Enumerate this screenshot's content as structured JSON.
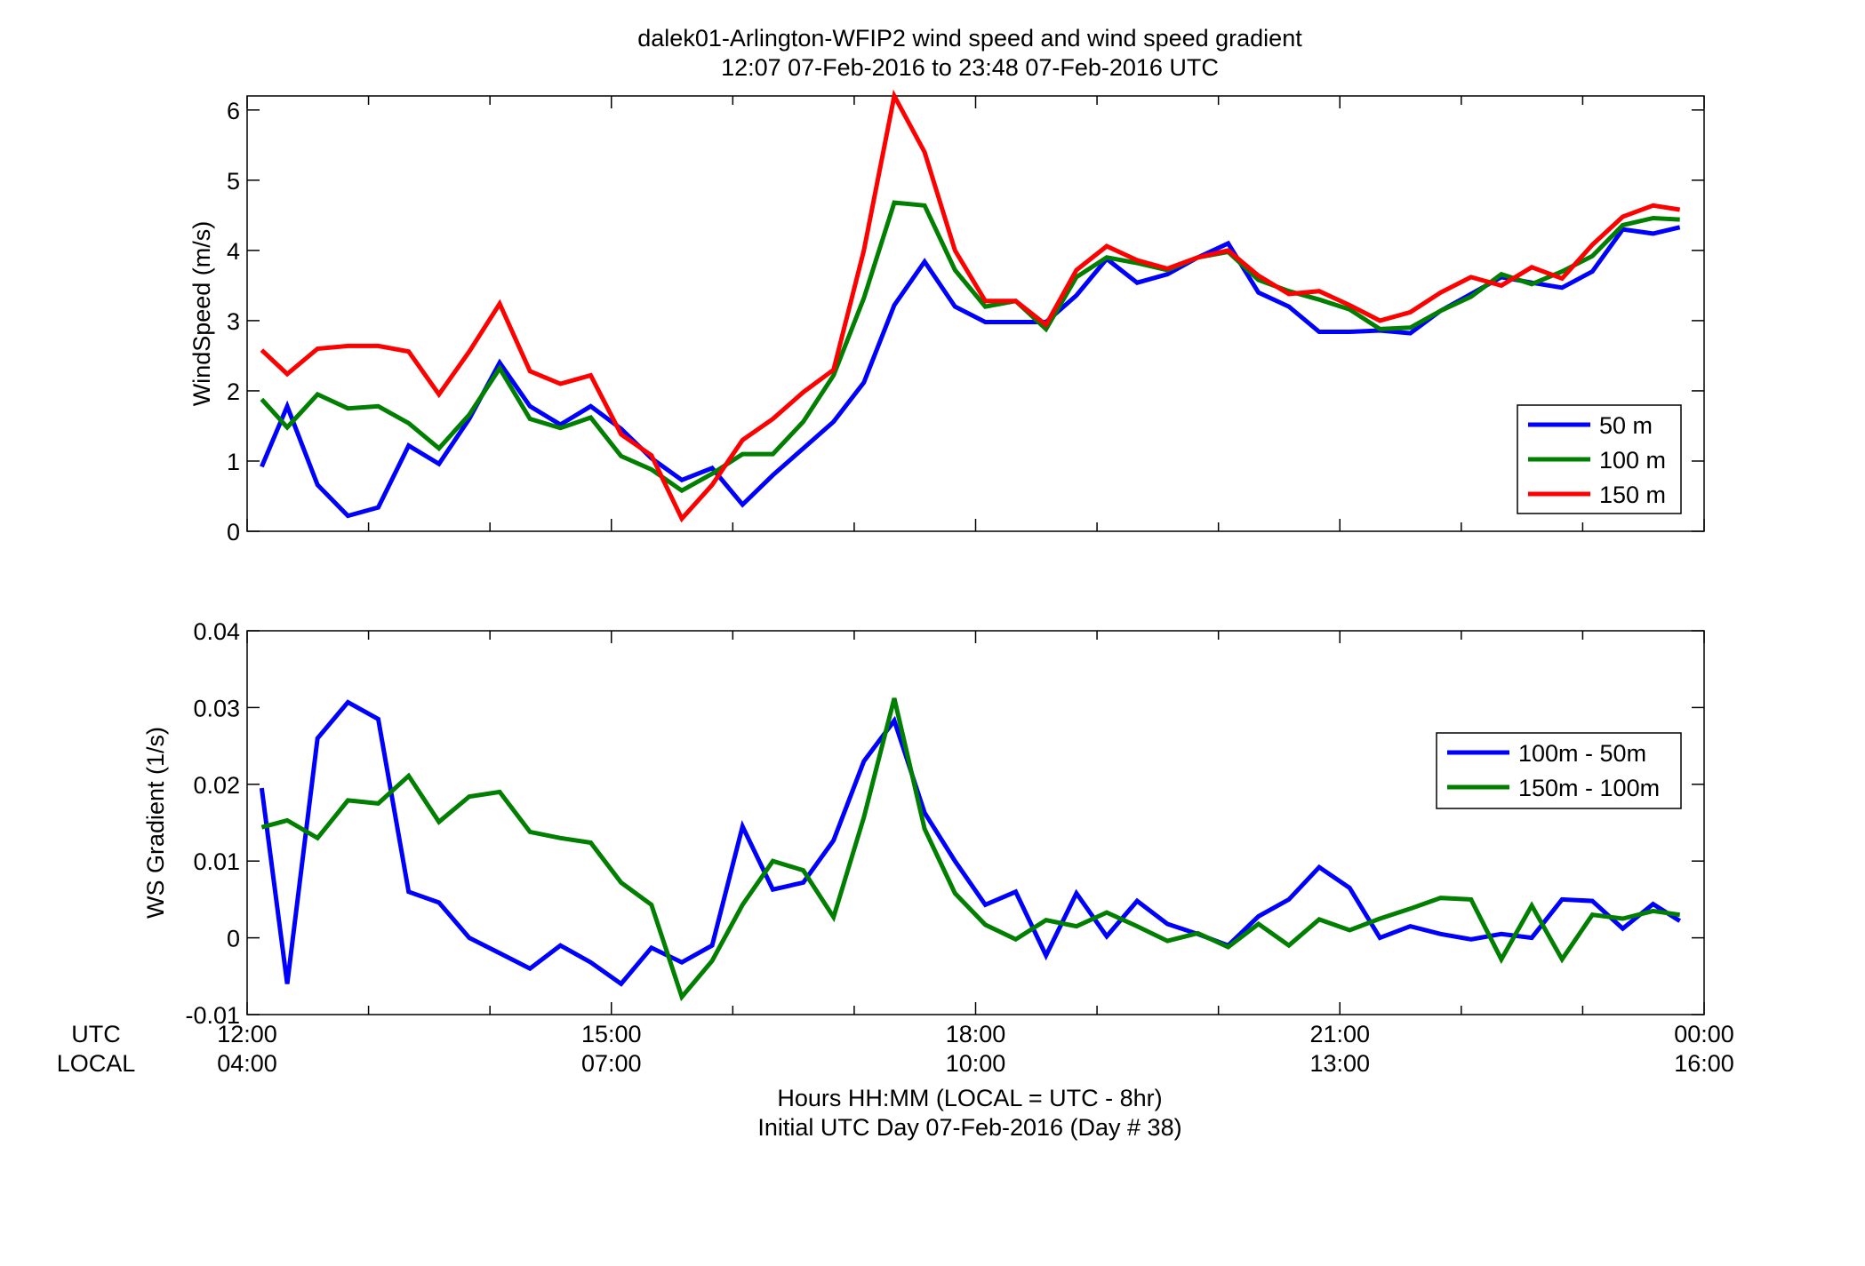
{
  "figure": {
    "title_line1": "dalek01-Arlington-WFIP2  wind speed and wind speed gradient",
    "title_line2": "12:07 07-Feb-2016 to 23:48 07-Feb-2016  UTC",
    "row_label_utc": "UTC",
    "row_label_local": "LOCAL",
    "xlabel_line1": "Hours HH:MM  (LOCAL = UTC - 8hr)",
    "xlabel_line2": "Initial UTC Day 07-Feb-2016 (Day # 38)",
    "colors": {
      "blue": "#0000ff",
      "green": "#007f00",
      "red": "#ff0000",
      "axis": "#000000"
    }
  },
  "chart_data": [
    {
      "type": "line",
      "ylabel": "WindSpeed (m/s)",
      "xlim": [
        12.0,
        24.0
      ],
      "ylim": [
        0,
        6.2
      ],
      "yticks": [
        0,
        1,
        2,
        3,
        4,
        5,
        6
      ],
      "ytick_labels": [
        "0",
        "1",
        "2",
        "3",
        "4",
        "5",
        "6"
      ],
      "xticks": [
        12,
        15,
        18,
        21,
        24
      ],
      "legend_position": "bottom-right",
      "x": [
        12.12,
        12.33,
        12.58,
        12.83,
        13.08,
        13.33,
        13.58,
        13.83,
        14.08,
        14.33,
        14.58,
        14.83,
        15.08,
        15.33,
        15.58,
        15.83,
        16.08,
        16.33,
        16.58,
        16.83,
        17.08,
        17.33,
        17.58,
        17.83,
        18.08,
        18.33,
        18.58,
        18.83,
        19.08,
        19.33,
        19.58,
        19.83,
        20.08,
        20.33,
        20.58,
        20.83,
        21.08,
        21.33,
        21.58,
        21.83,
        22.08,
        22.33,
        22.58,
        22.83,
        23.08,
        23.33,
        23.58,
        23.8
      ],
      "series": [
        {
          "name": "50 m",
          "color": "#0000ff",
          "values": [
            0.92,
            1.78,
            0.66,
            0.22,
            0.34,
            1.22,
            0.96,
            1.6,
            2.4,
            1.78,
            1.52,
            1.78,
            1.46,
            1.04,
            0.73,
            0.9,
            0.38,
            0.8,
            1.18,
            1.56,
            2.12,
            3.22,
            3.84,
            3.2,
            2.98,
            2.98,
            2.98,
            3.36,
            3.88,
            3.54,
            3.66,
            3.9,
            4.1,
            3.4,
            3.2,
            2.84,
            2.84,
            2.86,
            2.82,
            3.14,
            3.38,
            3.62,
            3.54,
            3.47,
            3.7,
            4.3,
            4.24,
            4.33
          ]
        },
        {
          "name": "100 m",
          "color": "#007f00",
          "values": [
            1.88,
            1.48,
            1.95,
            1.75,
            1.78,
            1.54,
            1.18,
            1.66,
            2.32,
            1.6,
            1.47,
            1.62,
            1.07,
            0.88,
            0.58,
            0.82,
            1.1,
            1.1,
            1.56,
            2.22,
            3.32,
            4.68,
            4.64,
            3.72,
            3.2,
            3.28,
            2.88,
            3.62,
            3.9,
            3.82,
            3.72,
            3.9,
            3.98,
            3.58,
            3.42,
            3.3,
            3.16,
            2.88,
            2.9,
            3.14,
            3.34,
            3.66,
            3.52,
            3.7,
            3.92,
            4.36,
            4.46,
            4.44
          ]
        },
        {
          "name": "150 m",
          "color": "#ff0000",
          "values": [
            2.58,
            2.24,
            2.6,
            2.64,
            2.64,
            2.56,
            1.95,
            2.56,
            3.24,
            2.28,
            2.1,
            2.22,
            1.38,
            1.08,
            0.18,
            0.66,
            1.3,
            1.6,
            1.98,
            2.3,
            4.0,
            6.2,
            5.4,
            4.0,
            3.28,
            3.28,
            2.94,
            3.72,
            4.06,
            3.86,
            3.74,
            3.9,
            4.0,
            3.64,
            3.38,
            3.42,
            3.22,
            3.0,
            3.12,
            3.4,
            3.62,
            3.5,
            3.76,
            3.6,
            4.08,
            4.48,
            4.64,
            4.58
          ]
        }
      ]
    },
    {
      "type": "line",
      "ylabel": "WS Gradient (1/s)",
      "xlim": [
        12.0,
        24.0
      ],
      "ylim": [
        -0.01,
        0.04
      ],
      "yticks": [
        -0.01,
        0,
        0.01,
        0.02,
        0.03,
        0.04
      ],
      "ytick_labels": [
        "-0.01",
        "0",
        "0.01",
        "0.02",
        "0.03",
        "0.04"
      ],
      "xticks": [
        12,
        15,
        18,
        21,
        24
      ],
      "xtick_labels_utc": [
        "12:00",
        "15:00",
        "18:00",
        "21:00",
        "00:00"
      ],
      "xtick_labels_local": [
        "04:00",
        "07:00",
        "10:00",
        "13:00",
        "16:00"
      ],
      "legend_position": "top-right",
      "x": [
        12.12,
        12.33,
        12.58,
        12.83,
        13.08,
        13.33,
        13.58,
        13.83,
        14.08,
        14.33,
        14.58,
        14.83,
        15.08,
        15.33,
        15.58,
        15.83,
        16.08,
        16.33,
        16.58,
        16.83,
        17.08,
        17.33,
        17.58,
        17.83,
        18.08,
        18.33,
        18.58,
        18.83,
        19.08,
        19.33,
        19.58,
        19.83,
        20.08,
        20.33,
        20.58,
        20.83,
        21.08,
        21.33,
        21.58,
        21.83,
        22.08,
        22.33,
        22.58,
        22.83,
        23.08,
        23.33,
        23.58,
        23.8
      ],
      "series": [
        {
          "name": "100m - 50m",
          "color": "#0000ff",
          "values": [
            0.0195,
            -0.006,
            0.026,
            0.0307,
            0.0285,
            0.006,
            0.0046,
            0.0,
            -0.002,
            -0.004,
            -0.001,
            -0.0032,
            -0.006,
            -0.0013,
            -0.0032,
            -0.001,
            0.0145,
            0.0063,
            0.0072,
            0.0127,
            0.023,
            0.0283,
            0.0163,
            0.01,
            0.0043,
            0.006,
            -0.0023,
            0.0058,
            0.0002,
            0.0048,
            0.0018,
            0.0005,
            -0.001,
            0.0028,
            0.005,
            0.0092,
            0.0065,
            0.0,
            0.0015,
            0.0005,
            -0.0002,
            0.0005,
            0.0,
            0.005,
            0.0048,
            0.0012,
            0.0044,
            0.0022
          ]
        },
        {
          "name": "150m - 100m",
          "color": "#007f00",
          "values": [
            0.0144,
            0.0153,
            0.013,
            0.0179,
            0.0175,
            0.0211,
            0.0151,
            0.0184,
            0.019,
            0.0138,
            0.013,
            0.0124,
            0.0072,
            0.0043,
            -0.0077,
            -0.003,
            0.0043,
            0.01,
            0.0088,
            0.0027,
            0.0157,
            0.0312,
            0.0142,
            0.0058,
            0.0017,
            -0.0002,
            0.0023,
            0.0015,
            0.0033,
            0.0015,
            -0.0004,
            0.0006,
            -0.0012,
            0.0018,
            -0.001,
            0.0024,
            0.001,
            0.0025,
            0.0038,
            0.0052,
            0.005,
            -0.0028,
            0.0042,
            -0.0028,
            0.003,
            0.0025,
            0.0035,
            0.003
          ]
        }
      ]
    }
  ]
}
